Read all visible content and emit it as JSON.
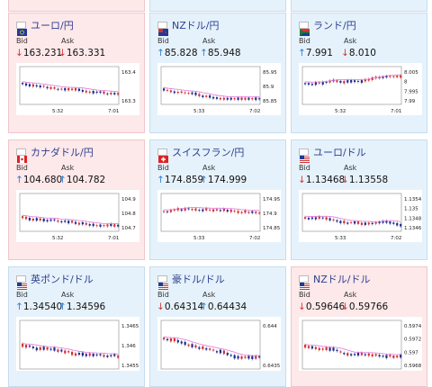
{
  "cards": [
    {
      "pair": "ユーロ/円",
      "flag": "eu",
      "dir": "down",
      "bid_label": "Bid",
      "ask_label": "Ask",
      "bid": "163.231",
      "ask": "163.331",
      "bid_dir": "down",
      "ask_dir": "down",
      "yticks": [
        "163.4",
        "163.3"
      ],
      "xticks": [
        "5:32",
        "7:01"
      ]
    },
    {
      "pair": "NZドル/円",
      "flag": "nz",
      "dir": "up",
      "bid_label": "Bid",
      "ask_label": "Ask",
      "bid": "85.828",
      "ask": "85.948",
      "bid_dir": "up",
      "ask_dir": "up",
      "yticks": [
        "85.95",
        "85.9",
        "85.85"
      ],
      "xticks": [
        "5:33",
        "7:02"
      ]
    },
    {
      "pair": "ランド/円",
      "flag": "za",
      "dir": "up",
      "bid_label": "Bid",
      "ask_label": "Ask",
      "bid": "7.991",
      "ask": "8.010",
      "bid_dir": "up",
      "ask_dir": "down",
      "yticks": [
        "8.005",
        "8",
        "7.995",
        "7.99"
      ],
      "xticks": [
        "5:32",
        "7:01"
      ]
    },
    {
      "pair": "カナダドル/円",
      "flag": "ca",
      "dir": "down",
      "bid_label": "Bid",
      "ask_label": "Ask",
      "bid": "104.680",
      "ask": "104.782",
      "bid_dir": "up",
      "ask_dir": "up",
      "yticks": [
        "104.9",
        "104.8",
        "104.7"
      ],
      "xticks": [
        "5:32",
        "7:01"
      ]
    },
    {
      "pair": "スイスフラン/円",
      "flag": "ch",
      "dir": "up",
      "bid_label": "Bid",
      "ask_label": "Ask",
      "bid": "174.859",
      "ask": "174.999",
      "bid_dir": "up",
      "ask_dir": "up",
      "yticks": [
        "174.95",
        "174.9",
        "174.85"
      ],
      "xticks": [
        "5:33",
        "7:02"
      ]
    },
    {
      "pair": "ユーロ/ドル",
      "flag": "us",
      "dir": "up",
      "bid_label": "Bid",
      "ask_label": "Ask",
      "bid": "1.13468",
      "ask": "1.13558",
      "bid_dir": "down",
      "ask_dir": "down",
      "yticks": [
        "1.1354",
        "1.135",
        "1.1348",
        "1.1346"
      ],
      "xticks": [
        "5:33",
        "7:02"
      ]
    },
    {
      "pair": "英ポンド/ドル",
      "flag": "us",
      "dir": "up",
      "bid_label": "Bid",
      "ask_label": "Ask",
      "bid": "1.34540",
      "ask": "1.34596",
      "bid_dir": "up",
      "ask_dir": "up",
      "yticks": [
        "1.3465",
        "1.346",
        "1.3455"
      ],
      "xticks": []
    },
    {
      "pair": "豪ドル/ドル",
      "flag": "us",
      "dir": "up",
      "bid_label": "Bid",
      "ask_label": "Ask",
      "bid": "0.64314",
      "ask": "0.64434",
      "bid_dir": "down",
      "ask_dir": "up",
      "yticks": [
        "0.644",
        "0.6435"
      ],
      "xticks": []
    },
    {
      "pair": "NZドル/ドル",
      "flag": "us",
      "dir": "down",
      "bid_label": "Bid",
      "ask_label": "Ask",
      "bid": "0.59646",
      "ask": "0.59766",
      "bid_dir": "down",
      "ask_dir": "down",
      "yticks": [
        "0.5974",
        "0.5972",
        "0.597",
        "0.5968"
      ],
      "xticks": []
    }
  ],
  "colors": {
    "up_candle": "#d23333",
    "down_candle": "#1f2d8c",
    "ma_line": "#e07ad8",
    "arrow_up": "#2a7fd6",
    "arrow_down": "#d23333"
  }
}
